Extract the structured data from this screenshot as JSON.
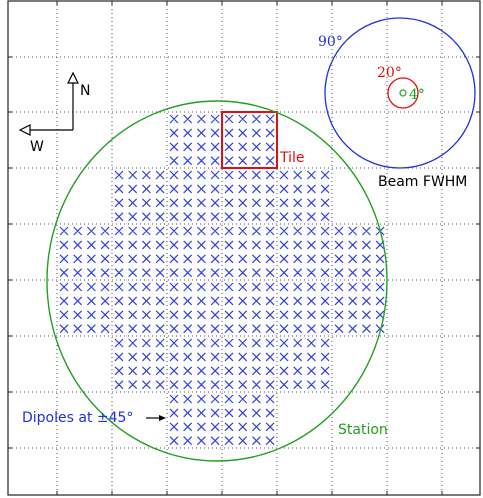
{
  "compass": {
    "north": "N",
    "west": "W"
  },
  "beam": {
    "title": "Beam FWHM",
    "outer": "90°",
    "middle": "20°",
    "inner": "4°"
  },
  "tile_label": "Tile",
  "station_label": "Station",
  "dipoles_label": "Dipoles at ±45°"
}
